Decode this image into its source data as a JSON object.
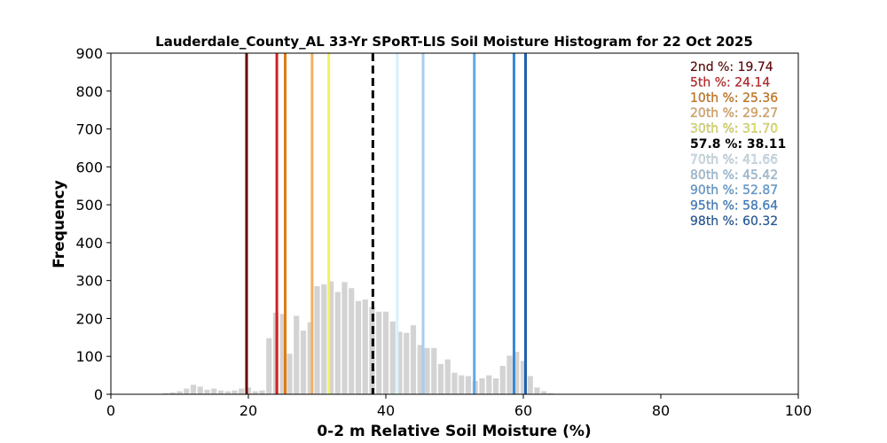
{
  "chart_data": {
    "type": "bar",
    "title": "Lauderdale_County_AL 33-Yr SPoRT-LIS Soil Moisture Histogram for 22 Oct 2025",
    "xlabel": "0-2 m Relative Soil Moisture (%)",
    "ylabel": "Frequency",
    "xlim": [
      0,
      100
    ],
    "ylim": [
      0,
      900
    ],
    "xticks": [
      "0",
      "20",
      "40",
      "60",
      "80",
      "100"
    ],
    "yticks": [
      "0",
      "100",
      "200",
      "300",
      "400",
      "500",
      "600",
      "700",
      "800",
      "900"
    ],
    "grid": false,
    "legend_placement": "top-right",
    "bar_color": "#d3d3d3",
    "bin_width": 0.8,
    "bins": {
      "x": [
        8,
        9,
        10,
        11,
        12,
        13,
        14,
        15,
        16,
        17,
        18,
        19,
        20,
        21,
        22,
        23,
        24,
        25,
        26,
        27,
        28,
        29,
        30,
        31,
        32,
        33,
        34,
        35,
        36,
        37,
        38,
        39,
        40,
        41,
        42,
        43,
        44,
        45,
        46,
        47,
        48,
        49,
        50,
        51,
        52,
        53,
        54,
        55,
        56,
        57,
        58,
        59,
        60,
        61,
        62,
        63,
        64
      ],
      "values": [
        3,
        5,
        8,
        15,
        25,
        20,
        12,
        15,
        10,
        8,
        10,
        15,
        18,
        8,
        10,
        148,
        215,
        212,
        107,
        207,
        168,
        190,
        285,
        290,
        298,
        270,
        296,
        280,
        246,
        250,
        230,
        218,
        218,
        192,
        165,
        162,
        182,
        130,
        122,
        122,
        80,
        92,
        57,
        50,
        48,
        35,
        42,
        50,
        42,
        75,
        102,
        112,
        88,
        48,
        18,
        8,
        3
      ]
    },
    "percentiles": [
      {
        "label": "2nd %: 19.74",
        "value": 19.74,
        "color": "#6b0000",
        "dashed": false,
        "bold": false
      },
      {
        "label": "5th %: 24.14",
        "value": 24.14,
        "color": "#d42020",
        "dashed": false,
        "bold": false
      },
      {
        "label": "10th %: 25.36",
        "value": 25.36,
        "color": "#e07b10",
        "dashed": false,
        "bold": false
      },
      {
        "label": "20th %: 29.27",
        "value": 29.27,
        "color": "#f4b060",
        "dashed": false,
        "bold": false
      },
      {
        "label": "30th %: 31.70",
        "value": 31.7,
        "color": "#f2f262",
        "dashed": false,
        "bold": false
      },
      {
        "label": "57.8 %: 38.11",
        "value": 38.11,
        "color": "#000000",
        "dashed": true,
        "bold": true
      },
      {
        "label": "70th %: 41.66",
        "value": 41.66,
        "color": "#d8f0ff",
        "dashed": false,
        "bold": false
      },
      {
        "label": "80th %: 45.42",
        "value": 45.42,
        "color": "#a6cef0",
        "dashed": false,
        "bold": false
      },
      {
        "label": "90th %: 52.87",
        "value": 52.87,
        "color": "#62a8e8",
        "dashed": false,
        "bold": false
      },
      {
        "label": "95th %: 58.64",
        "value": 58.64,
        "color": "#3a86d6",
        "dashed": false,
        "bold": false
      },
      {
        "label": "98th %: 60.32",
        "value": 60.32,
        "color": "#1f5fae",
        "dashed": false,
        "bold": false
      }
    ]
  }
}
